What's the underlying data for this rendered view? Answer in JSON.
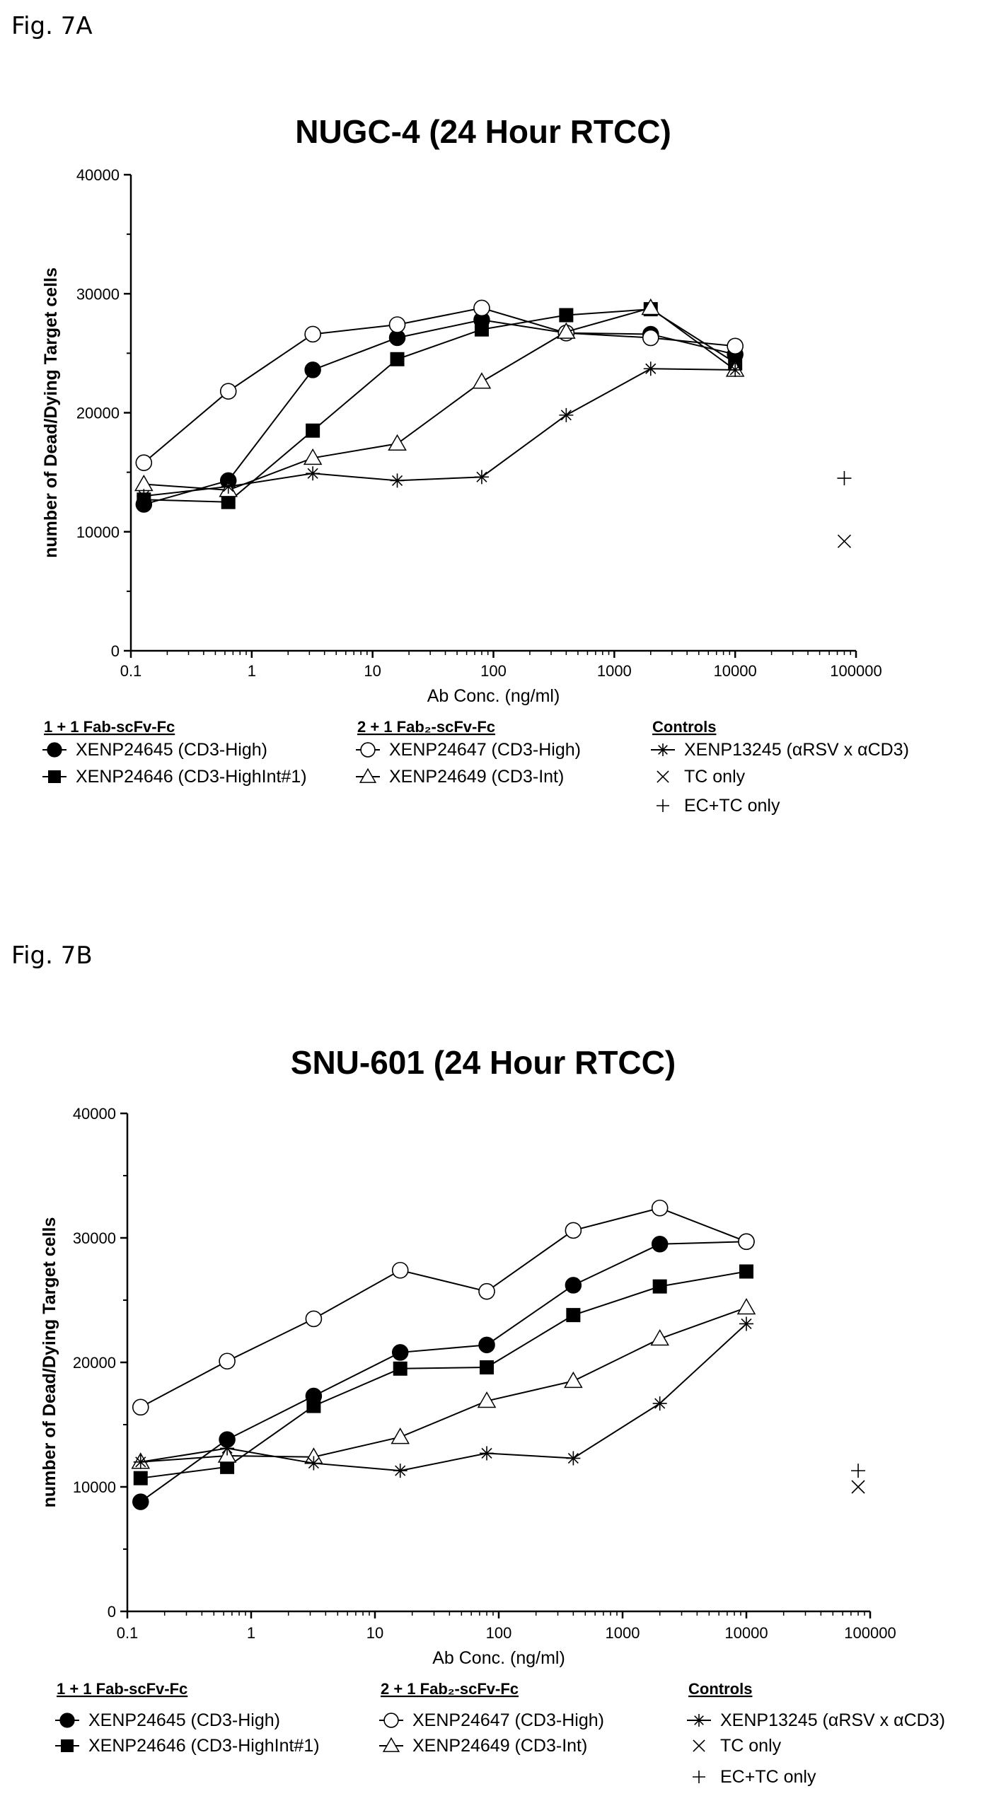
{
  "figures": [
    {
      "fig_label": "Fig. 7A",
      "legend": {
        "group_headers": [
          "1 + 1 Fab-scFv-Fc",
          "2 + 1 Fab₂-scFv-Fc",
          "Controls"
        ],
        "items": [
          "XENP24645 (CD3-High)",
          "XENP24646 (CD3-HighInt#1)",
          "XENP24647 (CD3-High)",
          "XENP24649 (CD3-Int)",
          "XENP13245 (αRSV x αCD3)",
          "TC only",
          "EC+TC only"
        ]
      }
    },
    {
      "fig_label": "Fig. 7B",
      "legend": {
        "group_headers": [
          "1 + 1 Fab-scFv-Fc",
          "2 + 1 Fab₂-scFv-Fc",
          "Controls"
        ],
        "items": [
          "XENP24645 (CD3-High)",
          "XENP24646 (CD3-HighInt#1)",
          "XENP24647 (CD3-High)",
          "XENP24649 (CD3-Int)",
          "XENP13245 (αRSV x αCD3)",
          "TC only",
          "EC+TC only"
        ]
      }
    }
  ],
  "chart_data": [
    {
      "type": "line",
      "title": "NUGC-4 (24 Hour RTCC)",
      "xlabel": "Ab Conc. (ng/ml)",
      "ylabel": "number of Dead/Dying Target cells",
      "xscale": "log",
      "xlim": [
        0.1,
        100000
      ],
      "ylim": [
        0,
        40000
      ],
      "x_ticks": [
        "0.1",
        "1",
        "10",
        "100",
        "1000",
        "10000",
        "100000"
      ],
      "y_ticks": [
        "0",
        "10000",
        "20000",
        "30000",
        "40000"
      ],
      "legend_position": "bottom",
      "series": [
        {
          "name": "XENP24645 (CD3-High)",
          "marker": "filled-circle",
          "x": [
            0.128,
            0.64,
            3.2,
            16,
            80,
            400,
            2000,
            10000
          ],
          "y": [
            12300,
            14300,
            23600,
            26300,
            27800,
            26700,
            26600,
            24900
          ]
        },
        {
          "name": "XENP24646 (CD3-HighInt#1)",
          "marker": "filled-square",
          "x": [
            0.128,
            0.64,
            3.2,
            16,
            80,
            400,
            2000,
            10000
          ],
          "y": [
            12700,
            12500,
            18500,
            24500,
            27000,
            28200,
            28700,
            24200
          ]
        },
        {
          "name": "XENP24647 (CD3-High)",
          "marker": "open-circle",
          "x": [
            0.128,
            0.64,
            3.2,
            16,
            80,
            400,
            2000,
            10000
          ],
          "y": [
            15800,
            21800,
            26600,
            27400,
            28800,
            26700,
            26300,
            25600
          ]
        },
        {
          "name": "XENP24649 (CD3-Int)",
          "marker": "open-triangle",
          "x": [
            0.128,
            0.64,
            3.2,
            16,
            80,
            400,
            2000,
            10000
          ],
          "y": [
            14000,
            13500,
            16200,
            17400,
            22600,
            26800,
            28800,
            23600
          ]
        },
        {
          "name": "XENP13245 (αRSV x αCD3)",
          "marker": "asterisk",
          "x": [
            0.128,
            0.64,
            3.2,
            16,
            80,
            400,
            2000,
            10000
          ],
          "y": [
            13000,
            13800,
            14900,
            14300,
            14600,
            19800,
            23700,
            23600
          ]
        },
        {
          "name": "TC only",
          "marker": "x",
          "line": false,
          "x": [
            80000
          ],
          "y": [
            9200
          ]
        },
        {
          "name": "EC+TC only",
          "marker": "plus",
          "line": false,
          "x": [
            80000
          ],
          "y": [
            14500
          ]
        }
      ]
    },
    {
      "type": "line",
      "title": "SNU-601 (24 Hour RTCC)",
      "xlabel": "Ab Conc. (ng/ml)",
      "ylabel": "number of Dead/Dying Target cells",
      "xscale": "log",
      "xlim": [
        0.1,
        100000
      ],
      "ylim": [
        0,
        40000
      ],
      "x_ticks": [
        "0.1",
        "1",
        "10",
        "100",
        "1000",
        "10000",
        "100000"
      ],
      "y_ticks": [
        "0",
        "10000",
        "20000",
        "30000",
        "40000"
      ],
      "legend_position": "bottom",
      "series": [
        {
          "name": "XENP24645 (CD3-High)",
          "marker": "filled-circle",
          "x": [
            0.128,
            0.64,
            3.2,
            16,
            80,
            400,
            2000,
            10000
          ],
          "y": [
            8800,
            13800,
            17300,
            20800,
            21400,
            26200,
            29500,
            29700
          ]
        },
        {
          "name": "XENP24646 (CD3-HighInt#1)",
          "marker": "filled-square",
          "x": [
            0.128,
            0.64,
            3.2,
            16,
            80,
            400,
            2000,
            10000
          ],
          "y": [
            10700,
            11600,
            16500,
            19500,
            19600,
            23800,
            26100,
            27300
          ]
        },
        {
          "name": "XENP24647 (CD3-High)",
          "marker": "open-circle",
          "x": [
            0.128,
            0.64,
            3.2,
            16,
            80,
            400,
            2000,
            10000
          ],
          "y": [
            16400,
            20100,
            23500,
            27400,
            25700,
            30600,
            32400,
            29700
          ]
        },
        {
          "name": "XENP24649 (CD3-Int)",
          "marker": "open-triangle",
          "x": [
            0.128,
            0.64,
            3.2,
            16,
            80,
            400,
            2000,
            10000
          ],
          "y": [
            12000,
            12500,
            12400,
            14000,
            16900,
            18500,
            21900,
            24400
          ]
        },
        {
          "name": "XENP13245 (αRSV x αCD3)",
          "marker": "asterisk",
          "x": [
            0.128,
            0.64,
            3.2,
            16,
            80,
            400,
            2000,
            10000
          ],
          "y": [
            12000,
            13100,
            11900,
            11300,
            12700,
            12300,
            16700,
            23100
          ]
        },
        {
          "name": "TC only",
          "marker": "x",
          "line": false,
          "x": [
            80000
          ],
          "y": [
            10000
          ]
        },
        {
          "name": "EC+TC only",
          "marker": "plus",
          "line": false,
          "x": [
            80000
          ],
          "y": [
            11300
          ]
        }
      ]
    }
  ]
}
